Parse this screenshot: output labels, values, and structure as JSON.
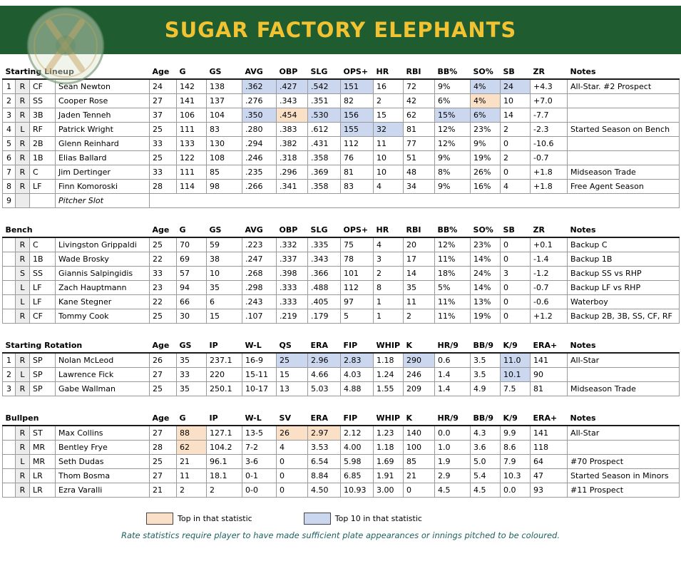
{
  "header": {
    "title": "SUGAR FACTORY ELEPHANTS",
    "banner_color": "#1f5c30",
    "title_color": "#f1c232"
  },
  "legend": {
    "top_label": "Top in that statistic",
    "top_color": "#fbe0c8",
    "top10_label": "Top 10 in that statistic",
    "top10_color": "#cbd7ee",
    "note": "Rate statistics require player to have made sufficient plate appearances or innings pitched to be coloured."
  },
  "tables": [
    {
      "section_label": "Starting Lineup",
      "columns": [
        "Age",
        "G",
        "GS",
        "AVG",
        "OBP",
        "SLG",
        "OPS+",
        "HR",
        "RBI",
        "BB%",
        "SO%",
        "SB",
        "ZR",
        "Notes"
      ],
      "rows": [
        {
          "num": "1",
          "hand": "R",
          "pos": "CF",
          "name": "Sean Newton",
          "stats": [
            "24",
            "142",
            "138",
            {
              "v": ".362",
              "hl": "top10"
            },
            {
              "v": ".427",
              "hl": "top10"
            },
            {
              "v": ".542",
              "hl": "top10"
            },
            {
              "v": "151",
              "hl": "top10"
            },
            "16",
            "72",
            "9%",
            {
              "v": "4%",
              "hl": "top10"
            },
            {
              "v": "24",
              "hl": "top10"
            },
            "+4.3"
          ],
          "notes": "All-Star. #2 Prospect"
        },
        {
          "num": "2",
          "hand": "R",
          "pos": "SS",
          "name": "Cooper Rose",
          "stats": [
            "27",
            "141",
            "137",
            ".276",
            ".343",
            ".351",
            "82",
            "2",
            "42",
            "6%",
            {
              "v": "4%",
              "hl": "top"
            },
            "10",
            "+7.0"
          ],
          "notes": ""
        },
        {
          "num": "3",
          "hand": "R",
          "pos": "3B",
          "name": "Jaden Tenneh",
          "stats": [
            "37",
            "106",
            "104",
            {
              "v": ".350",
              "hl": "top10"
            },
            {
              "v": ".454",
              "hl": "top"
            },
            {
              "v": ".530",
              "hl": "top10"
            },
            {
              "v": "156",
              "hl": "top10"
            },
            "15",
            "62",
            {
              "v": "15%",
              "hl": "top10"
            },
            {
              "v": "6%",
              "hl": "top10"
            },
            "14",
            "-7.7"
          ],
          "notes": ""
        },
        {
          "num": "4",
          "hand": "L",
          "pos": "RF",
          "name": "Patrick Wright",
          "stats": [
            "25",
            "111",
            "83",
            ".280",
            ".383",
            ".612",
            {
              "v": "155",
              "hl": "top10"
            },
            {
              "v": "32",
              "hl": "top10"
            },
            "81",
            "12%",
            "23%",
            "2",
            "-2.3"
          ],
          "notes": "Started Season on Bench"
        },
        {
          "num": "5",
          "hand": "R",
          "pos": "2B",
          "name": "Glenn Reinhard",
          "stats": [
            "33",
            "133",
            "130",
            ".294",
            ".382",
            ".431",
            "112",
            "11",
            "77",
            "12%",
            "9%",
            "0",
            "-10.6"
          ],
          "notes": ""
        },
        {
          "num": "6",
          "hand": "R",
          "pos": "1B",
          "name": "Elias Ballard",
          "stats": [
            "25",
            "122",
            "108",
            ".246",
            ".318",
            ".358",
            "76",
            "10",
            "51",
            "9%",
            "19%",
            "2",
            "-0.7"
          ],
          "notes": ""
        },
        {
          "num": "7",
          "hand": "R",
          "pos": "C",
          "name": "Jim Dertinger",
          "stats": [
            "33",
            "111",
            "85",
            ".235",
            ".296",
            ".369",
            "81",
            "10",
            "48",
            "8%",
            "26%",
            "0",
            "+1.8"
          ],
          "notes": "Midseason Trade"
        },
        {
          "num": "8",
          "hand": "R",
          "pos": "LF",
          "name": "Finn Komoroski",
          "stats": [
            "28",
            "114",
            "98",
            ".266",
            ".341",
            ".358",
            "83",
            "4",
            "34",
            "9%",
            "16%",
            "4",
            "+1.8"
          ],
          "notes": "Free Agent Season"
        },
        {
          "num": "9",
          "hand": "",
          "pos": "",
          "name": "Pitcher Slot",
          "italic": true,
          "span_rest": true,
          "stats": [],
          "notes": ""
        }
      ]
    },
    {
      "section_label": "Bench",
      "columns": [
        "Age",
        "G",
        "GS",
        "AVG",
        "OBP",
        "SLG",
        "OPS+",
        "HR",
        "RBI",
        "BB%",
        "SO%",
        "SB",
        "ZR",
        "Notes"
      ],
      "rows": [
        {
          "num": "",
          "hand": "R",
          "pos": "C",
          "name": "Livingston Grippaldi",
          "stats": [
            "25",
            "70",
            "59",
            ".223",
            ".332",
            ".335",
            "75",
            "4",
            "20",
            "12%",
            "23%",
            "0",
            "+0.1"
          ],
          "notes": "Backup C"
        },
        {
          "num": "",
          "hand": "R",
          "pos": "1B",
          "name": "Wade Brosky",
          "stats": [
            "22",
            "69",
            "38",
            ".247",
            ".337",
            ".343",
            "78",
            "3",
            "17",
            "11%",
            "14%",
            "0",
            "-1.4"
          ],
          "notes": "Backup 1B"
        },
        {
          "num": "",
          "hand": "S",
          "pos": "SS",
          "name": "Giannis Salpingidis",
          "stats": [
            "33",
            "57",
            "10",
            ".268",
            ".398",
            ".366",
            "101",
            "2",
            "14",
            "18%",
            "24%",
            "3",
            "-1.2"
          ],
          "notes": "Backup SS vs RHP"
        },
        {
          "num": "",
          "hand": "L",
          "pos": "LF",
          "name": "Zach Hauptmann",
          "stats": [
            "23",
            "94",
            "35",
            ".298",
            ".333",
            ".488",
            "112",
            "8",
            "35",
            "5%",
            "14%",
            "0",
            "-0.7"
          ],
          "notes": "Backup LF vs RHP"
        },
        {
          "num": "",
          "hand": "L",
          "pos": "LF",
          "name": "Kane Stegner",
          "stats": [
            "22",
            "66",
            "6",
            ".243",
            ".333",
            ".405",
            "97",
            "1",
            "11",
            "11%",
            "13%",
            "0",
            "-0.6"
          ],
          "notes": "Waterboy"
        },
        {
          "num": "",
          "hand": "R",
          "pos": "CF",
          "name": "Tommy Cook",
          "stats": [
            "25",
            "30",
            "15",
            ".107",
            ".219",
            ".179",
            "5",
            "1",
            "2",
            "11%",
            "19%",
            "0",
            "+1.2"
          ],
          "notes": "Backup 2B, 3B, SS, CF, RF"
        }
      ]
    },
    {
      "section_label": "Starting Rotation",
      "columns": [
        "Age",
        "GS",
        "IP",
        "W-L",
        "QS",
        "ERA",
        "FIP",
        "WHIP",
        "K",
        "HR/9",
        "BB/9",
        "K/9",
        "ERA+",
        "Notes"
      ],
      "rows": [
        {
          "num": "1",
          "hand": "R",
          "pos": "SP",
          "name": "Nolan McLeod",
          "stats": [
            "26",
            "35",
            "237.1",
            "16-9",
            {
              "v": "25",
              "hl": "top10"
            },
            {
              "v": "2.96",
              "hl": "top10"
            },
            {
              "v": "2.83",
              "hl": "top10"
            },
            "1.18",
            {
              "v": "290",
              "hl": "top10"
            },
            "0.6",
            "3.5",
            {
              "v": "11.0",
              "hl": "top10"
            },
            "141"
          ],
          "notes": "All-Star"
        },
        {
          "num": "2",
          "hand": "L",
          "pos": "SP",
          "name": "Lawrence Fick",
          "stats": [
            "27",
            "33",
            "220",
            "15-11",
            "15",
            "4.66",
            "4.03",
            "1.24",
            "246",
            "1.4",
            "3.5",
            {
              "v": "10.1",
              "hl": "top10"
            },
            "90"
          ],
          "notes": ""
        },
        {
          "num": "3",
          "hand": "R",
          "pos": "SP",
          "name": "Gabe Wallman",
          "stats": [
            "25",
            "35",
            "250.1",
            "10-17",
            "13",
            "5.03",
            "4.88",
            "1.55",
            "209",
            "1.4",
            "4.9",
            "7.5",
            "81"
          ],
          "notes": "Midseason Trade"
        }
      ]
    },
    {
      "section_label": "Bullpen",
      "columns": [
        "Age",
        "G",
        "IP",
        "W-L",
        "SV",
        "ERA",
        "FIP",
        "WHIP",
        "K",
        "HR/9",
        "BB/9",
        "K/9",
        "ERA+",
        "Notes"
      ],
      "rows": [
        {
          "num": "",
          "hand": "R",
          "pos": "ST",
          "name": "Max Collins",
          "stats": [
            "27",
            {
              "v": "88",
              "hl": "top"
            },
            "127.1",
            "13-5",
            {
              "v": "26",
              "hl": "top"
            },
            {
              "v": "2.97",
              "hl": "top"
            },
            "2.12",
            "1.23",
            "140",
            "0.0",
            "4.3",
            "9.9",
            "141"
          ],
          "notes": "All-Star"
        },
        {
          "num": "",
          "hand": "R",
          "pos": "MR",
          "name": "Bentley Frye",
          "stats": [
            "28",
            {
              "v": "62",
              "hl": "top"
            },
            "104.2",
            "7-2",
            "4",
            "3.53",
            "4.00",
            "1.18",
            "100",
            "1.0",
            "3.6",
            "8.6",
            "118"
          ],
          "notes": ""
        },
        {
          "num": "",
          "hand": "L",
          "pos": "MR",
          "name": "Seth Dudas",
          "stats": [
            "25",
            "21",
            "96.1",
            "3-6",
            "0",
            "6.54",
            "5.98",
            "1.69",
            "85",
            "1.9",
            "5.0",
            "7.9",
            "64"
          ],
          "notes": "#70 Prospect"
        },
        {
          "num": "",
          "hand": "R",
          "pos": "LR",
          "name": "Thom Bosma",
          "stats": [
            "27",
            "11",
            "18.1",
            "0-1",
            "0",
            "8.84",
            "6.85",
            "1.91",
            "21",
            "2.9",
            "5.4",
            "10.3",
            "47"
          ],
          "notes": "Started Season in Minors"
        },
        {
          "num": "",
          "hand": "R",
          "pos": "LR",
          "name": "Ezra Varalli",
          "stats": [
            "21",
            "2",
            "2",
            "0-0",
            "0",
            "4.50",
            "10.93",
            "3.00",
            "0",
            "4.5",
            "4.5",
            "0.0",
            "93"
          ],
          "notes": "#11 Prospect"
        }
      ]
    }
  ]
}
